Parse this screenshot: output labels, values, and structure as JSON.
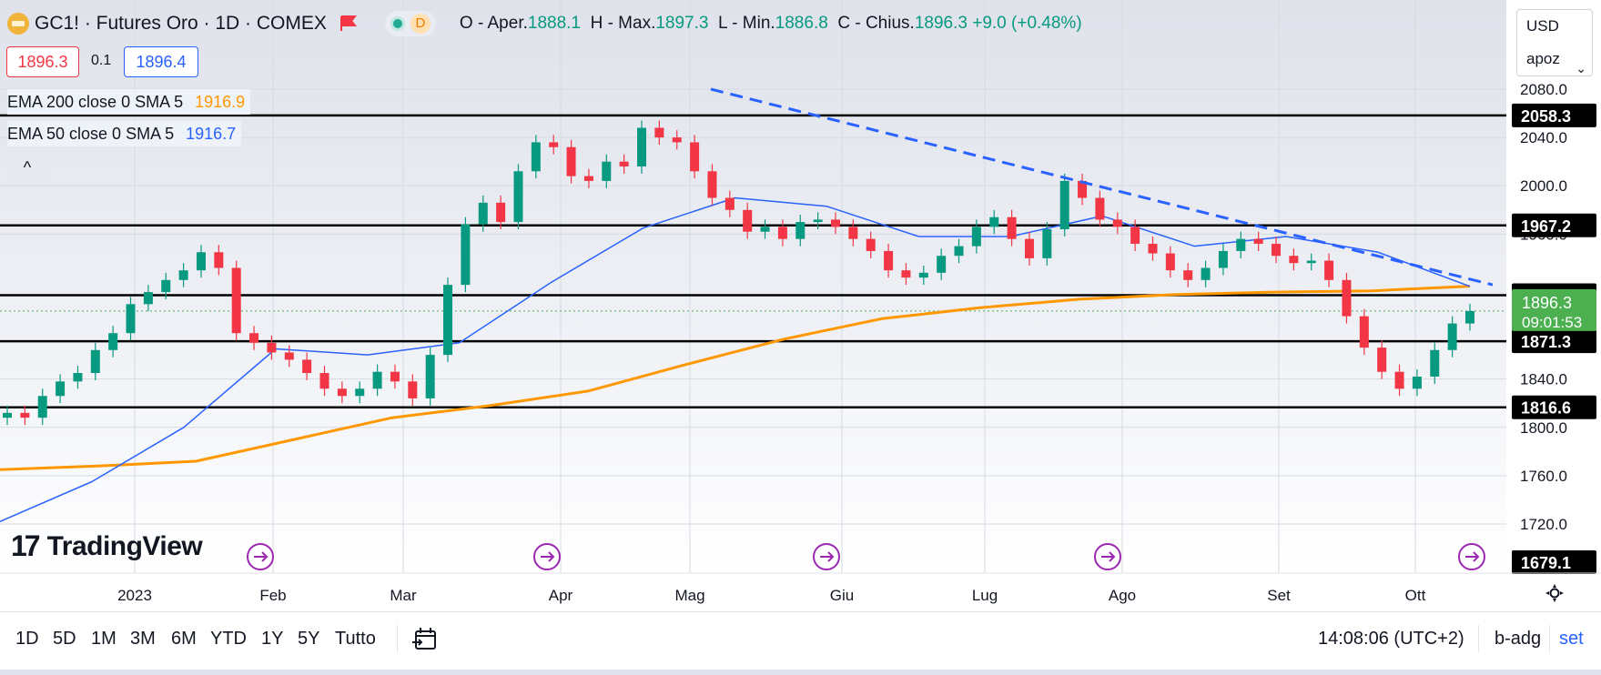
{
  "header": {
    "symbol_title": "GC1! · Futures Oro · 1D · COMEX",
    "market_status_letter": "D",
    "ohlc": {
      "open_label": "O - Aper.",
      "open": "1888.1",
      "high_label": "H - Max.",
      "high": "1897.3",
      "low_label": "L - Min.",
      "low": "1886.8",
      "close_label": "C - Chius.",
      "close": "1896.3",
      "change": "+9.0 (+0.48%)"
    },
    "bid": "1896.3",
    "spread": "0.1",
    "ask": "1896.4"
  },
  "indicators": [
    {
      "label": "EMA 200 close 0 SMA 5",
      "value": "1916.9",
      "color": "#ff9800"
    },
    {
      "label": "EMA 50 close 0 SMA 5",
      "value": "1916.7",
      "color": "#2962ff"
    }
  ],
  "controls": {
    "currency": "USD",
    "scale_mode": "apoz",
    "collapse_glyph": "^"
  },
  "watermark": "TradingView",
  "bottom_bar": {
    "ranges": [
      "1D",
      "5D",
      "1M",
      "3M",
      "6M",
      "YTD",
      "1Y",
      "5Y",
      "Tutto"
    ],
    "clock": "14:08:06 (UTC+2)",
    "adjust": "b-adg",
    "settings_link": "set"
  },
  "colors": {
    "up": "#089981",
    "down": "#f23645",
    "ema200": "#ff9800",
    "ema50": "#2962ff",
    "trendline": "#2962ff",
    "current_price_bg": "#4caf50",
    "level_bg": "#000000"
  },
  "chart_data": {
    "type": "candlestick",
    "instrument": "GC1!",
    "timeframe": "1D",
    "x_tick_labels": [
      "2023",
      "Feb",
      "Mar",
      "Apr",
      "Mag",
      "Giu",
      "Lug",
      "Ago",
      "Set",
      "Ott"
    ],
    "y_tick_labels": [
      "2080.0",
      "2040.0",
      "2000.0",
      "1960.0",
      "1840.0",
      "1800.0",
      "1760.0",
      "1720.0"
    ],
    "y_range": [
      1679.1,
      2080.0
    ],
    "horizontal_levels": [
      2058.3,
      1967.2,
      1909.4,
      1871.3,
      1816.6
    ],
    "axis_min_label": "1679.1",
    "current_price": "1896.3",
    "countdown": "09:01:53",
    "event_markers": [
      "Feb",
      "Mar",
      "Mag",
      "Ago",
      "Ott"
    ],
    "series": [
      {
        "name": "EMA 200",
        "values": [
          1765,
          1768,
          1772,
          1790,
          1808,
          1818,
          1830,
          1852,
          1873,
          1890,
          1899,
          1906,
          1910,
          1912,
          1913,
          1916.9
        ]
      },
      {
        "name": "EMA 50",
        "values": [
          1722,
          1755,
          1800,
          1865,
          1860,
          1870,
          1920,
          1965,
          1990,
          1983,
          1958,
          1958,
          1975,
          1950,
          1958,
          1945,
          1916.7
        ]
      }
    ],
    "candles_close": [
      1812,
      1808,
      1826,
      1838,
      1845,
      1864,
      1878,
      1902,
      1912,
      1922,
      1930,
      1945,
      1932,
      1878,
      1870,
      1862,
      1856,
      1845,
      1832,
      1826,
      1832,
      1846,
      1838,
      1824,
      1860,
      1918,
      1968,
      1986,
      1970,
      2012,
      2036,
      2032,
      2008,
      2004,
      2020,
      2016,
      2048,
      2040,
      2036,
      2012,
      1990,
      1980,
      1962,
      1966,
      1956,
      1970,
      1972,
      1966,
      1956,
      1946,
      1930,
      1924,
      1928,
      1942,
      1950,
      1966,
      1974,
      1956,
      1940,
      1964,
      2004,
      1990,
      1972,
      1966,
      1952,
      1944,
      1930,
      1922,
      1932,
      1946,
      1956,
      1952,
      1942,
      1936,
      1938,
      1922,
      1892,
      1866,
      1846,
      1832,
      1842,
      1864,
      1886,
      1896.3
    ]
  }
}
